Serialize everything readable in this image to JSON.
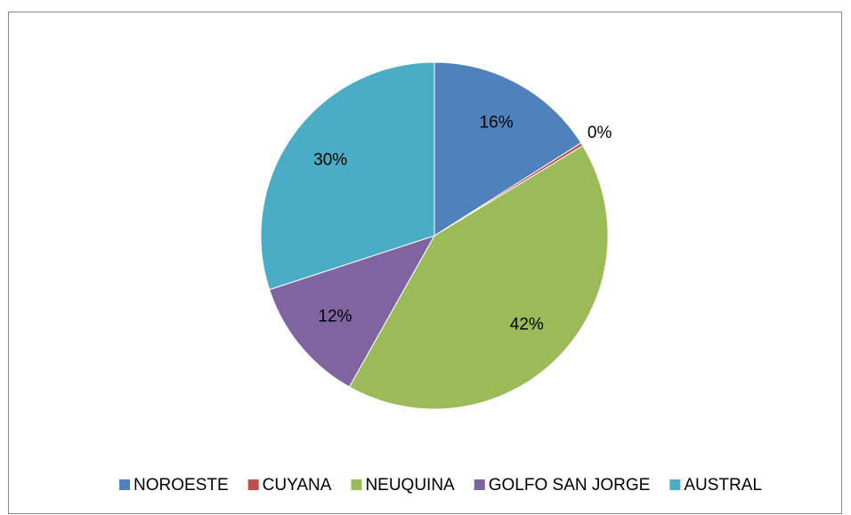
{
  "chart_data": {
    "type": "pie",
    "categories": [
      "NOROESTE",
      "CUYANA",
      "NEUQUINA",
      "GOLFO SAN JORGE",
      "AUSTRAL"
    ],
    "values": [
      16,
      0.3,
      41.8,
      11.8,
      30
    ],
    "value_labels": [
      "16%",
      "0%",
      "42%",
      "12%",
      "30%"
    ],
    "colors": [
      "#4f81bd",
      "#c0504d",
      "#9bbb59",
      "#8064a2",
      "#4bacc6"
    ],
    "legend": "bottom"
  }
}
